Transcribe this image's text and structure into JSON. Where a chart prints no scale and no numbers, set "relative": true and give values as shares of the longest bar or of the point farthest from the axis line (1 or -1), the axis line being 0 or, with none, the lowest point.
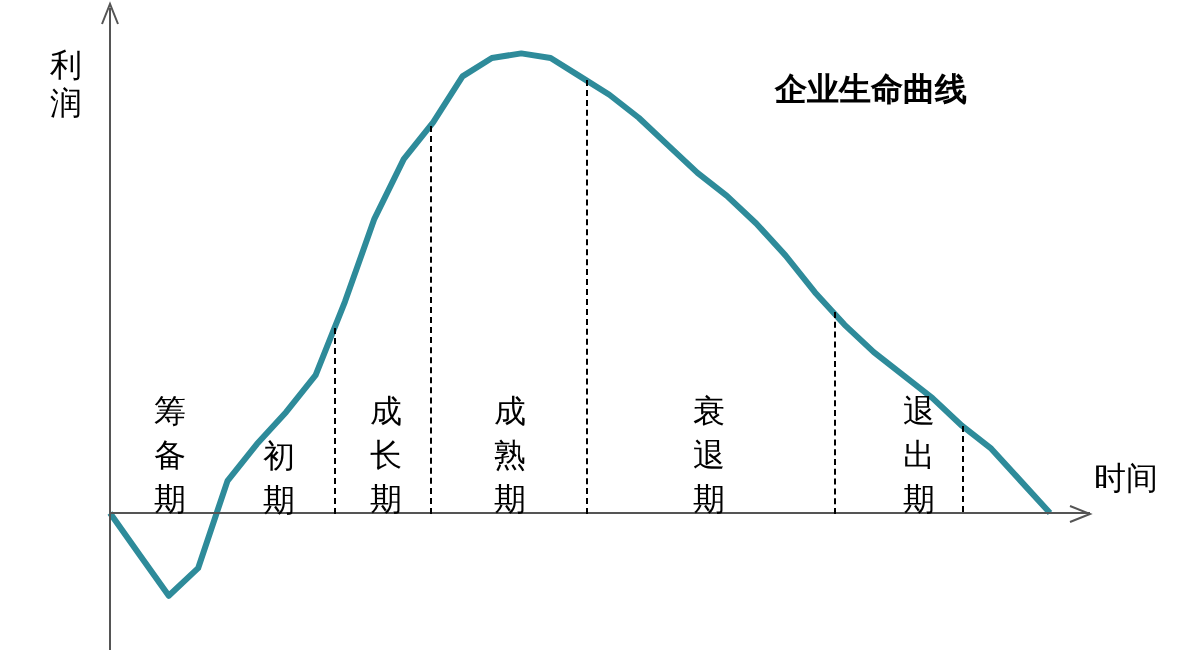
{
  "chart_data": {
    "type": "line",
    "title": "企业生命曲线",
    "xlabel": "时间",
    "ylabel": "利润",
    "relative": true,
    "marker": "none",
    "categories": [
      null,
      null,
      null,
      null,
      null,
      null,
      null,
      null,
      null,
      null,
      null,
      null,
      null,
      null,
      null,
      null,
      null,
      null,
      null,
      null,
      null,
      null,
      null,
      null,
      null,
      null,
      null,
      null,
      null,
      null,
      null,
      null,
      null
    ],
    "series": [
      {
        "color": "#2e8b9a",
        "values": [
          0,
          -0.09,
          -0.18,
          -0.12,
          0.07,
          0.15,
          0.22,
          0.3,
          0.46,
          0.64,
          0.77,
          0.85,
          0.95,
          0.99,
          1,
          0.99,
          0.95,
          0.91,
          0.86,
          0.8,
          0.74,
          0.69,
          0.63,
          0.56,
          0.48,
          0.41,
          0.35,
          0.3,
          0.25,
          0.19,
          0.14,
          0.07,
          0
        ]
      }
    ],
    "annotations": [
      "筹备期",
      "初期",
      "成长期",
      "成熟期",
      "衰退期",
      "退出期"
    ]
  }
}
